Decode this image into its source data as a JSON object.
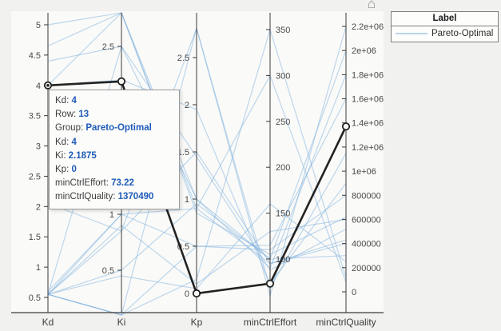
{
  "icons": {
    "home": "⌂"
  },
  "legend": {
    "title": "Label",
    "entries": [
      {
        "label": "Pareto-Optimal",
        "color": "#b9d3ec"
      }
    ]
  },
  "tooltip": {
    "rows": [
      {
        "label": "Kd",
        "value": "4"
      },
      {
        "label": "Row",
        "value": "13"
      },
      {
        "label": "Group",
        "value": "Pareto-Optimal"
      },
      {
        "label": "Kd",
        "value": "4"
      },
      {
        "label": "Ki",
        "value": "2.1875"
      },
      {
        "label": "Kp",
        "value": "0"
      },
      {
        "label": "minCtrlEffort",
        "value": "73.22"
      },
      {
        "label": "minCtrlQuality",
        "value": "1370490"
      }
    ]
  },
  "chart_data": {
    "type": "parallel-coordinates",
    "group_name": "Pareto-Optimal",
    "coordinates": [
      "Kd",
      "Ki",
      "Kp",
      "minCtrlEffort",
      "minCtrlQuality"
    ],
    "axes": [
      {
        "label": "Kd",
        "ticks": [
          0.5,
          1,
          1.5,
          2,
          2.5,
          3,
          3.5,
          4,
          4.5,
          5
        ],
        "tick_labels": [
          "0.5",
          "1",
          "1.5",
          "2",
          "2.5",
          "3",
          "3.5",
          "4",
          "4.5",
          "5"
        ],
        "range": [
          0.5,
          5
        ],
        "label_side": "left"
      },
      {
        "label": "Ki",
        "ticks": [
          0.5,
          1,
          1.5,
          2,
          2.5
        ],
        "tick_labels": [
          "0.5",
          "1",
          "1.5",
          "2",
          "2.5"
        ],
        "range": [
          0.1,
          2.8
        ],
        "label_side": "left"
      },
      {
        "label": "Kp",
        "ticks": [
          0,
          0.5,
          1,
          1.5,
          2,
          2.5
        ],
        "tick_labels": [
          "0",
          "0.5",
          "1",
          "1.5",
          "2",
          "2.5"
        ],
        "range": [
          0,
          2.81
        ],
        "label_side": "left"
      },
      {
        "label": "minCtrlEffort",
        "ticks": [
          100,
          150,
          200,
          250,
          300,
          350
        ],
        "tick_labels": [
          "100",
          "150",
          "200",
          "250",
          "300",
          "350"
        ],
        "range": [
          60,
          350
        ],
        "label_side": "right"
      },
      {
        "label": "minCtrlQuality",
        "ticks": [
          0,
          200000,
          400000,
          600000,
          800000,
          1000000,
          1200000,
          1400000,
          1600000,
          1800000,
          2000000,
          2200000
        ],
        "tick_labels": [
          "0",
          "200000",
          "400000",
          "600000",
          "800000",
          "1e+06",
          "1.2e+06",
          "1.4e+06",
          "1.6e+06",
          "1.8e+06",
          "2e+06",
          "2.2e+06"
        ],
        "range": [
          0,
          2200000
        ],
        "label_side": "right"
      }
    ],
    "series": [
      {
        "name": "Pareto-Optimal",
        "values": [
          5.0,
          2.8,
          0.9,
          95,
          430000
        ]
      },
      {
        "name": "Pareto-Optimal",
        "values": [
          4.65,
          2.8,
          1.0,
          100,
          300000
        ]
      },
      {
        "name": "Pareto-Optimal",
        "values": [
          4.4,
          2.5,
          1.45,
          88,
          520000
        ]
      },
      {
        "name": "Pareto-Optimal",
        "values": [
          4.0,
          2.8,
          0.85,
          105,
          620000
        ]
      },
      {
        "name": "Pareto-Optimal",
        "values": [
          4.0,
          2.2,
          1.95,
          73,
          900000
        ]
      },
      {
        "name": "Pareto-Optimal",
        "values": [
          2.05,
          0.85,
          2.81,
          68,
          1150000
        ]
      },
      {
        "name": "Pareto-Optimal",
        "values": [
          0.55,
          0.1,
          2.81,
          60,
          2200000
        ]
      },
      {
        "name": "Pareto-Optimal",
        "values": [
          0.55,
          0.1,
          0.15,
          350,
          120000
        ]
      },
      {
        "name": "Pareto-Optimal",
        "values": [
          0.55,
          2.5,
          1.0,
          90,
          1800000
        ]
      },
      {
        "name": "Pareto-Optimal",
        "values": [
          0.55,
          1.0,
          0.5,
          110,
          800000
        ]
      },
      {
        "name": "Pareto-Optimal",
        "values": [
          0.55,
          0.9,
          0.1,
          130,
          600000
        ]
      },
      {
        "name": "Pareto-Optimal",
        "values": [
          0.55,
          0.85,
          1.5,
          95,
          400000
        ]
      },
      {
        "name": "Pareto-Optimal",
        "values": [
          0.55,
          0.5,
          0.95,
          100,
          2000000
        ]
      },
      {
        "name": "Pareto-Optimal",
        "values": [
          0.55,
          0.1,
          0.5,
          115,
          1600000
        ]
      },
      {
        "name": "Pareto-Optimal",
        "values": [
          0.6,
          1.0,
          0.9,
          300,
          80000
        ]
      },
      {
        "name": "Pareto-Optimal",
        "values": [
          0.55,
          0.45,
          0.05,
          160,
          250000
        ]
      }
    ],
    "highlighted": {
      "name": "Pareto-Optimal",
      "row": 13,
      "values": [
        4,
        2.1875,
        0,
        73.22,
        1370490
      ]
    },
    "colors": {
      "line": "#74aadc",
      "highlight": "#222222",
      "axis": "#3a3a3a"
    },
    "legend_position": "top-right",
    "grid": false
  }
}
